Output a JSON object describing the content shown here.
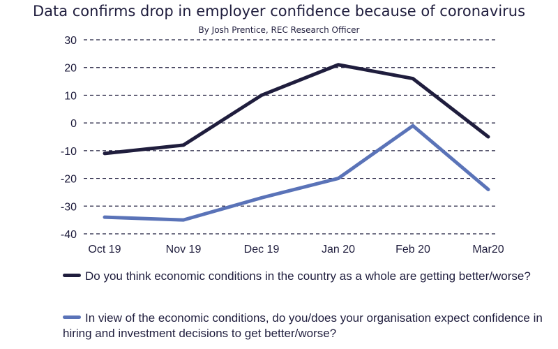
{
  "chart_data": {
    "type": "line",
    "title": "Data confirms drop in employer confidence because of coronavirus",
    "subtitle": "By Josh Prentice, REC Research Officer",
    "categories": [
      "Oct 19",
      "Nov 19",
      "Dec 19",
      "Jan 20",
      "Feb 20",
      "Mar20"
    ],
    "ylim": [
      -40,
      30
    ],
    "yticks": [
      "30",
      "20",
      "10",
      "0",
      "-10",
      "-20",
      "-30",
      "-40"
    ],
    "grid": "dashed horizontal",
    "legend_position": "bottom",
    "series": [
      {
        "name": "Do you think economic conditions in the country as a whole are getting better/worse?",
        "color": "#1f1d3d",
        "values": [
          -11,
          -8,
          10,
          21,
          16,
          -5
        ]
      },
      {
        "name": "In view of the economic conditions, do you/does your organisation expect confidence in hiring and investment decisions to get better/worse?",
        "color": "#5a73b8",
        "values": [
          -34,
          -35,
          -27,
          -20,
          -1,
          -24
        ]
      }
    ]
  }
}
